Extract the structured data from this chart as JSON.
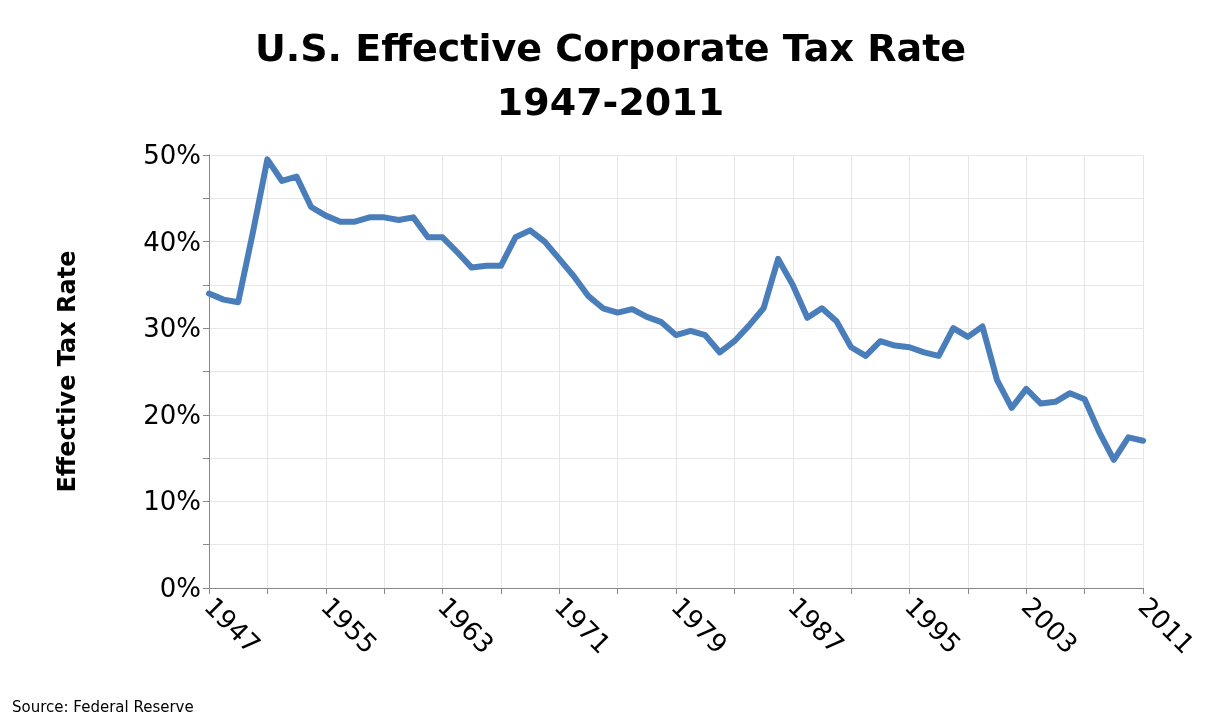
{
  "chart_data": {
    "type": "line",
    "title": "U.S. Effective Corporate Tax Rate\n1947-2011",
    "ylabel": "Effective Tax Rate",
    "annotations": [
      "Source: Federal Reserve"
    ],
    "x": [
      1947,
      1948,
      1949,
      1950,
      1951,
      1952,
      1953,
      1954,
      1955,
      1956,
      1957,
      1958,
      1959,
      1960,
      1961,
      1962,
      1963,
      1964,
      1965,
      1966,
      1967,
      1968,
      1969,
      1970,
      1971,
      1972,
      1973,
      1974,
      1975,
      1976,
      1977,
      1978,
      1979,
      1980,
      1981,
      1982,
      1983,
      1984,
      1985,
      1986,
      1987,
      1988,
      1989,
      1990,
      1991,
      1992,
      1993,
      1994,
      1995,
      1996,
      1997,
      1998,
      1999,
      2000,
      2001,
      2002,
      2003,
      2004,
      2005,
      2006,
      2007,
      2008,
      2009,
      2010,
      2011
    ],
    "series": [
      {
        "color": "#4a7ebb",
        "values": [
          34,
          33.3,
          33,
          41,
          49.5,
          47,
          47.5,
          44,
          43,
          42.3,
          42.3,
          42.8,
          42.8,
          42.5,
          42.8,
          40.5,
          40.5,
          38.8,
          37,
          37.2,
          37.2,
          40.5,
          41.3,
          40,
          38,
          36,
          33.7,
          32.3,
          31.8,
          32.2,
          31.3,
          30.7,
          29.2,
          29.7,
          29.2,
          27.2,
          28.5,
          30.3,
          32.3,
          38,
          35,
          31.2,
          32.3,
          30.8,
          27.8,
          26.8,
          28.5,
          28,
          27.8,
          27.2,
          26.8,
          30,
          29,
          30.2,
          24,
          20.8,
          23,
          21.3,
          21.5,
          22.5,
          21.8,
          18,
          14.8,
          17.4,
          17
        ]
      }
    ],
    "xlim": [
      1947,
      2011
    ],
    "xticks": [
      1947,
      {
        "value": 1951,
        "label": null
      },
      1955,
      {
        "value": 1959,
        "label": null
      },
      1963,
      {
        "value": 1967,
        "label": null
      },
      1971,
      {
        "value": 1975,
        "label": null
      },
      1979,
      {
        "value": 1983,
        "label": null
      },
      1987,
      {
        "value": 1991,
        "label": null
      },
      1995,
      {
        "value": 1999,
        "label": null
      },
      2003,
      {
        "value": 2007,
        "label": null
      },
      2011
    ],
    "ylim": [
      0,
      50
    ],
    "yticks": [
      {
        "value": 0,
        "label": "0%"
      },
      {
        "value": 5,
        "label": null
      },
      {
        "value": 10,
        "label": "10%"
      },
      {
        "value": 15,
        "label": null
      },
      {
        "value": 20,
        "label": "20%"
      },
      {
        "value": 25,
        "label": null
      },
      {
        "value": 30,
        "label": "30%"
      },
      {
        "value": 35,
        "label": null
      },
      {
        "value": 40,
        "label": "40%"
      },
      {
        "value": 45,
        "label": null
      },
      {
        "value": 50,
        "label": "50%"
      }
    ],
    "grid": true,
    "marker": "none",
    "line_style": "solid"
  }
}
